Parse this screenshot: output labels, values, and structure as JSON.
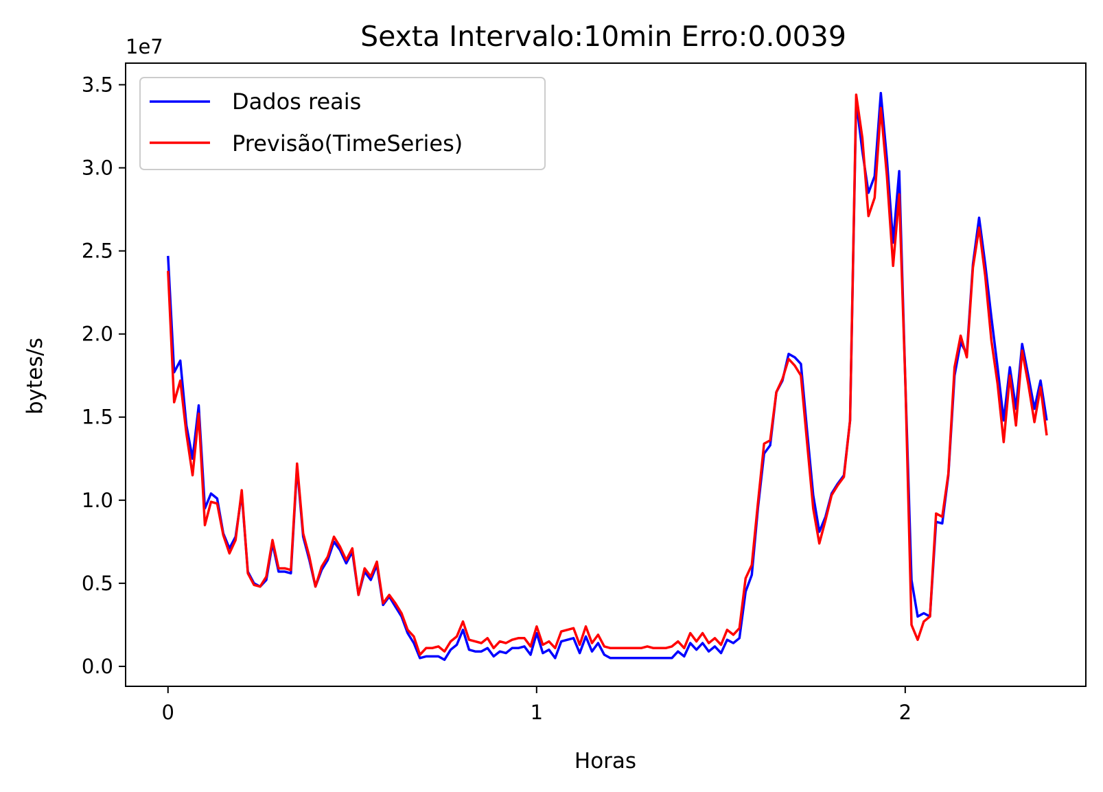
{
  "chart_data": {
    "type": "line",
    "title": "Sexta Intervalo:10min Erro:0.0039",
    "xlabel": "Horas",
    "ylabel": "bytes/s",
    "offset_text": "1e7",
    "xlim": [
      -0.115,
      2.49
    ],
    "ylim": [
      -0.12,
      3.63
    ],
    "x_ticks": [
      0,
      1,
      2
    ],
    "x_tick_labels": [
      "0",
      "1",
      "2"
    ],
    "y_ticks": [
      0.0,
      0.5,
      1.0,
      1.5,
      2.0,
      2.5,
      3.0,
      3.5
    ],
    "y_tick_labels": [
      "0.0",
      "0.5",
      "1.0",
      "1.5",
      "2.0",
      "2.5",
      "3.0",
      "3.5"
    ],
    "x_step": 0.01667,
    "legend_position": "upper-left",
    "grid": false,
    "series": [
      {
        "name": "Dados reais",
        "color": "#0000ff",
        "values": [
          2.47,
          1.77,
          1.84,
          1.45,
          1.25,
          1.57,
          0.95,
          1.04,
          1.01,
          0.8,
          0.71,
          0.78,
          1.04,
          0.57,
          0.5,
          0.48,
          0.52,
          0.74,
          0.57,
          0.57,
          0.56,
          1.2,
          0.78,
          0.64,
          0.48,
          0.58,
          0.64,
          0.75,
          0.7,
          0.62,
          0.69,
          0.43,
          0.57,
          0.52,
          0.61,
          0.37,
          0.42,
          0.36,
          0.3,
          0.2,
          0.14,
          0.05,
          0.06,
          0.06,
          0.06,
          0.04,
          0.1,
          0.13,
          0.22,
          0.1,
          0.09,
          0.09,
          0.11,
          0.06,
          0.09,
          0.08,
          0.11,
          0.11,
          0.12,
          0.07,
          0.2,
          0.08,
          0.1,
          0.05,
          0.15,
          0.16,
          0.17,
          0.08,
          0.18,
          0.09,
          0.14,
          0.07,
          0.05,
          0.05,
          0.05,
          0.05,
          0.05,
          0.05,
          0.05,
          0.05,
          0.05,
          0.05,
          0.05,
          0.09,
          0.06,
          0.14,
          0.1,
          0.14,
          0.09,
          0.12,
          0.08,
          0.16,
          0.14,
          0.17,
          0.45,
          0.55,
          0.95,
          1.28,
          1.33,
          1.65,
          1.72,
          1.88,
          1.86,
          1.82,
          1.42,
          1.03,
          0.81,
          0.9,
          1.04,
          1.1,
          1.15,
          1.48,
          3.4,
          3.1,
          2.85,
          2.95,
          3.45,
          3.05,
          2.55,
          2.98,
          1.7,
          0.52,
          0.3,
          0.32,
          0.3,
          0.87,
          0.86,
          1.15,
          1.75,
          1.95,
          1.88,
          2.42,
          2.7,
          2.42,
          2.1,
          1.8,
          1.48,
          1.8,
          1.55,
          1.94,
          1.75,
          1.55,
          1.72,
          1.48
        ],
        "x_start": 0
      },
      {
        "name": "Previsão(TimeSeries)",
        "color": "#ff0000",
        "values": [
          2.38,
          1.59,
          1.72,
          1.4,
          1.15,
          1.52,
          0.85,
          0.99,
          0.98,
          0.79,
          0.68,
          0.76,
          1.06,
          0.56,
          0.49,
          0.48,
          0.54,
          0.76,
          0.59,
          0.59,
          0.58,
          1.22,
          0.8,
          0.66,
          0.48,
          0.6,
          0.66,
          0.78,
          0.72,
          0.64,
          0.71,
          0.43,
          0.59,
          0.54,
          0.63,
          0.38,
          0.43,
          0.38,
          0.32,
          0.22,
          0.18,
          0.07,
          0.11,
          0.11,
          0.12,
          0.09,
          0.15,
          0.18,
          0.27,
          0.16,
          0.15,
          0.14,
          0.17,
          0.11,
          0.15,
          0.14,
          0.16,
          0.17,
          0.17,
          0.12,
          0.24,
          0.13,
          0.15,
          0.11,
          0.21,
          0.22,
          0.23,
          0.13,
          0.24,
          0.14,
          0.19,
          0.12,
          0.11,
          0.11,
          0.11,
          0.11,
          0.11,
          0.11,
          0.12,
          0.11,
          0.11,
          0.11,
          0.12,
          0.15,
          0.11,
          0.2,
          0.15,
          0.2,
          0.14,
          0.17,
          0.13,
          0.22,
          0.19,
          0.23,
          0.53,
          0.61,
          0.98,
          1.34,
          1.36,
          1.65,
          1.73,
          1.85,
          1.81,
          1.75,
          1.35,
          0.95,
          0.74,
          0.88,
          1.03,
          1.09,
          1.14,
          1.48,
          3.44,
          3.18,
          2.71,
          2.82,
          3.36,
          2.95,
          2.41,
          2.84,
          1.7,
          0.25,
          0.16,
          0.27,
          0.3,
          0.92,
          0.9,
          1.16,
          1.8,
          1.99,
          1.86,
          2.4,
          2.64,
          2.35,
          1.96,
          1.7,
          1.35,
          1.75,
          1.45,
          1.9,
          1.7,
          1.47,
          1.68,
          1.39
        ],
        "x_start": 0
      }
    ]
  }
}
